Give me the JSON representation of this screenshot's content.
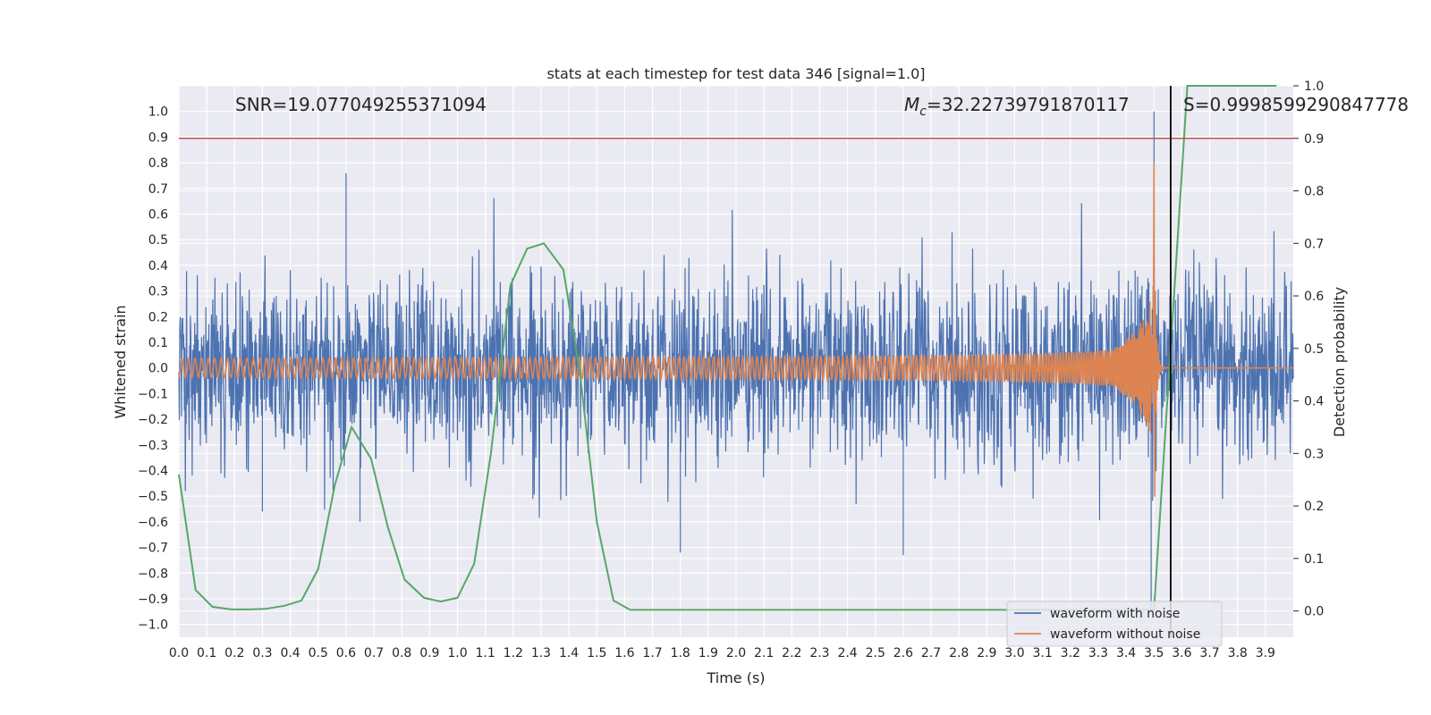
{
  "chart_data": {
    "type": "line",
    "title": "stats at each timestep for test data 346 [signal=1.0]",
    "xlabel": "Time (s)",
    "ylabel": "Whitened strain",
    "ylabel_right": "Detection probability",
    "xlim": [
      0.0,
      4.0
    ],
    "ylim": [
      -1.05,
      1.1
    ],
    "ylim_right": [
      -0.05,
      1.0
    ],
    "xticks": [
      0.0,
      0.1,
      0.2,
      0.3,
      0.4,
      0.5,
      0.6,
      0.7,
      0.8,
      0.9,
      1.0,
      1.1,
      1.2,
      1.3,
      1.4,
      1.5,
      1.6,
      1.7,
      1.8,
      1.9,
      2.0,
      2.1,
      2.2,
      2.3,
      2.4,
      2.5,
      2.6,
      2.7,
      2.8,
      2.9,
      3.0,
      3.1,
      3.2,
      3.3,
      3.4,
      3.5,
      3.6,
      3.7,
      3.8,
      3.9
    ],
    "yticks": [
      1.0,
      0.9,
      0.8,
      0.7,
      0.6,
      0.5,
      0.4,
      0.3,
      0.2,
      0.1,
      0.0,
      -0.1,
      -0.2,
      -0.3,
      -0.4,
      -0.5,
      -0.6,
      -0.7,
      -0.8,
      -0.9,
      -1.0
    ],
    "yticks_right": [
      1.0,
      0.9,
      0.8,
      0.7,
      0.6,
      0.5,
      0.4,
      0.3,
      0.2,
      0.1,
      0.0
    ],
    "grid": true,
    "legend_position": "bottom-right",
    "annotations": {
      "snr": "SNR=19.077049255371094",
      "mc_symbol": "M",
      "mc_subscript": "c",
      "mc_value": "=32.22739791870117",
      "s_value": "S=0.9998599290847778"
    },
    "threshold_line": {
      "axis": "right",
      "y": 0.9,
      "color": "#c44e52"
    },
    "vertical_line": {
      "x": 3.56,
      "color": "#000000"
    },
    "series": [
      {
        "name": "waveform with noise",
        "color": "#4c72b0",
        "kind": "noise",
        "std": 0.17,
        "spikes": [
          [
            0.6,
            0.76
          ],
          [
            3.5,
            1.0
          ],
          [
            3.49,
            -0.95
          ],
          [
            2.6,
            -0.73
          ],
          [
            1.8,
            -0.72
          ],
          [
            0.3,
            -0.56
          ],
          [
            0.65,
            -0.6
          ]
        ]
      },
      {
        "name": "waveform without noise",
        "color": "#dd8452",
        "kind": "chirp",
        "merger_time": 3.5,
        "peak": 0.8
      },
      {
        "axis": "right",
        "color": "#55a868",
        "kind": "probability",
        "x": [
          0.0,
          0.06,
          0.12,
          0.19,
          0.25,
          0.31,
          0.38,
          0.44,
          0.5,
          0.56,
          0.62,
          0.69,
          0.75,
          0.81,
          0.88,
          0.94,
          1.0,
          1.06,
          1.12,
          1.19,
          1.25,
          1.31,
          1.38,
          1.44,
          1.5,
          1.56,
          1.62,
          3.5,
          3.56,
          3.62,
          3.94
        ],
        "y": [
          0.26,
          0.04,
          0.008,
          0.003,
          0.003,
          0.004,
          0.01,
          0.02,
          0.08,
          0.24,
          0.35,
          0.29,
          0.16,
          0.06,
          0.025,
          0.018,
          0.025,
          0.09,
          0.3,
          0.62,
          0.69,
          0.7,
          0.65,
          0.45,
          0.17,
          0.02,
          0.002,
          0.002,
          0.5,
          1.0,
          1.0
        ]
      }
    ]
  }
}
